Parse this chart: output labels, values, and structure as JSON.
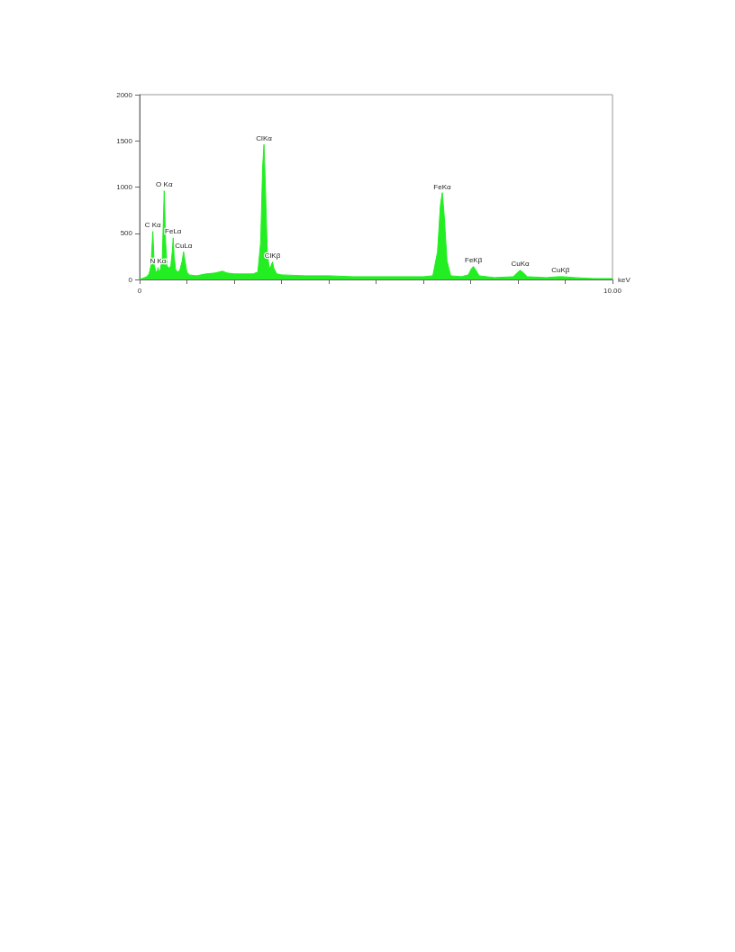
{
  "chart_data": {
    "type": "area",
    "xlabel": "keV",
    "color": "#22ee22",
    "marker": "none",
    "grid": false,
    "x": [
      0,
      0.05,
      0.1,
      0.15,
      0.2,
      0.24,
      0.28,
      0.31,
      0.34,
      0.37,
      0.39,
      0.41,
      0.44,
      0.48,
      0.52,
      0.55,
      0.58,
      0.62,
      0.66,
      0.69,
      0.71,
      0.73,
      0.76,
      0.8,
      0.85,
      0.9,
      0.93,
      0.96,
      1.0,
      1.05,
      1.2,
      1.4,
      1.6,
      1.75,
      1.85,
      2.0,
      2.2,
      2.4,
      2.5,
      2.56,
      2.6,
      2.63,
      2.66,
      2.7,
      2.74,
      2.78,
      2.81,
      2.84,
      2.9,
      3.0,
      3.5,
      4.0,
      4.5,
      5.0,
      5.5,
      6.0,
      6.2,
      6.3,
      6.36,
      6.4,
      6.44,
      6.5,
      6.58,
      6.8,
      6.95,
      7.02,
      7.06,
      7.1,
      7.18,
      7.5,
      7.9,
      8.0,
      8.05,
      8.1,
      8.2,
      8.6,
      8.85,
      8.9,
      8.95,
      9.2,
      9.6,
      10
    ],
    "values": [
      0,
      10,
      20,
      30,
      60,
      150,
      520,
      150,
      90,
      80,
      130,
      80,
      110,
      250,
      960,
      400,
      150,
      120,
      150,
      300,
      450,
      250,
      110,
      80,
      100,
      200,
      300,
      200,
      80,
      50,
      40,
      60,
      70,
      90,
      70,
      60,
      60,
      60,
      80,
      400,
      1200,
      1460,
      1000,
      300,
      120,
      150,
      190,
      120,
      60,
      50,
      40,
      40,
      30,
      30,
      30,
      30,
      40,
      300,
      800,
      940,
      700,
      200,
      40,
      30,
      50,
      120,
      140,
      110,
      40,
      20,
      30,
      80,
      100,
      80,
      30,
      20,
      30,
      30,
      30,
      20,
      10,
      10
    ],
    "xlim": [
      0,
      10
    ],
    "xticks": [
      0,
      {
        "value": 1,
        "label": null
      },
      {
        "value": 2,
        "label": null
      },
      {
        "value": 3,
        "label": null
      },
      {
        "value": 4,
        "label": null
      },
      {
        "value": 5,
        "label": null
      },
      {
        "value": 6,
        "label": null
      },
      {
        "value": 7,
        "label": null
      },
      {
        "value": 8,
        "label": null
      },
      {
        "value": 9,
        "label": null
      },
      {
        "value": 10,
        "label": "10.00"
      }
    ],
    "ylim": [
      0,
      2000
    ],
    "yticks": [
      0,
      500,
      1000,
      1500,
      2000
    ],
    "annotations": [
      {
        "text": "C Kα",
        "x": 0.28,
        "y": 520
      },
      {
        "text": "N Kα",
        "x": 0.39,
        "y": 130
      },
      {
        "text": "O Kα",
        "x": 0.52,
        "y": 960
      },
      {
        "text": "FeLα",
        "x": 0.71,
        "y": 450
      },
      {
        "text": "CuLα",
        "x": 0.93,
        "y": 300
      },
      {
        "text": "ClKα",
        "x": 2.63,
        "y": 1460
      },
      {
        "text": "ClKβ",
        "x": 2.81,
        "y": 190
      },
      {
        "text": "FeKα",
        "x": 6.4,
        "y": 935
      },
      {
        "text": "FeKβ",
        "x": 7.06,
        "y": 140
      },
      {
        "text": "CuKα",
        "x": 8.05,
        "y": 100
      },
      {
        "text": "CuKβ",
        "x": 8.9,
        "y": 30
      }
    ]
  }
}
